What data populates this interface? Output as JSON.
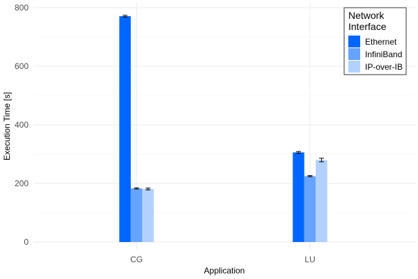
{
  "chart_data": {
    "type": "bar",
    "title": "",
    "xlabel": "Application",
    "ylabel": "Execution Time [s]",
    "categories": [
      "CG",
      "LU"
    ],
    "ylim": [
      0,
      810
    ],
    "yticks": [
      0,
      200,
      400,
      600,
      800
    ],
    "grid": true,
    "legend": {
      "title_lines": [
        "Network",
        "Interface"
      ],
      "placement": "top-right"
    },
    "series": [
      {
        "name": "Ethernet",
        "color": "#0066ff",
        "values": [
          771,
          306
        ],
        "errors": [
          3,
          3
        ]
      },
      {
        "name": "InfiniBand",
        "color": "#66a3ff",
        "values": [
          183,
          225
        ],
        "errors": [
          2,
          2
        ]
      },
      {
        "name": "IP-over-IB",
        "color": "#b3d1ff",
        "values": [
          181,
          280
        ],
        "errors": [
          3,
          6
        ]
      }
    ]
  }
}
